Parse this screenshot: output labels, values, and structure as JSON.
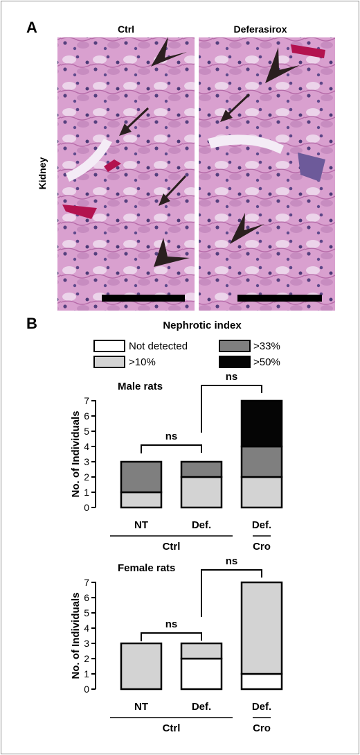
{
  "panel_a": {
    "label": "A",
    "row_label": "Kidney",
    "left_title": "Ctrl",
    "right_title": "Deferasirox"
  },
  "panel_b": {
    "label": "B",
    "legend_title": "Nephrotic index",
    "legend": [
      {
        "label": "Not detected",
        "color": "#ffffff"
      },
      {
        "label": ">33%",
        "color": "#7f7f7f"
      },
      {
        "label": ">10%",
        "color": "#d3d3d3"
      },
      {
        "label": ">50%",
        "color": "#050505"
      }
    ]
  },
  "chart_data": [
    {
      "type": "bar",
      "stacked": true,
      "title": "Male rats",
      "ylabel": "No. of Individuals",
      "ylim": [
        0,
        7
      ],
      "yticks": [
        0,
        1,
        2,
        3,
        4,
        5,
        6,
        7
      ],
      "categories": [
        "NT",
        "Def.",
        "Def."
      ],
      "groups": [
        {
          "label": "Ctrl",
          "categories": [
            0,
            1
          ]
        },
        {
          "label": "Cro",
          "categories": [
            2
          ]
        }
      ],
      "series": [
        {
          "name": "Not detected",
          "color": "#ffffff",
          "values": [
            0,
            0,
            0
          ]
        },
        {
          "name": ">10%",
          "color": "#d3d3d3",
          "values": [
            1,
            2,
            2
          ]
        },
        {
          "name": ">33%",
          "color": "#7f7f7f",
          "values": [
            2,
            1,
            2
          ]
        },
        {
          "name": ">50%",
          "color": "#050505",
          "values": [
            0,
            0,
            3
          ]
        }
      ],
      "annotations": [
        {
          "text": "ns",
          "between": [
            0,
            1
          ]
        },
        {
          "text": "ns",
          "between": [
            1,
            2
          ]
        }
      ]
    },
    {
      "type": "bar",
      "stacked": true,
      "title": "Female rats",
      "ylabel": "No. of Individuals",
      "ylim": [
        0,
        7
      ],
      "yticks": [
        0,
        1,
        2,
        3,
        4,
        5,
        6,
        7
      ],
      "categories": [
        "NT",
        "Def.",
        "Def."
      ],
      "groups": [
        {
          "label": "Ctrl",
          "categories": [
            0,
            1
          ]
        },
        {
          "label": "Cro",
          "categories": [
            2
          ]
        }
      ],
      "series": [
        {
          "name": "Not detected",
          "color": "#ffffff",
          "values": [
            0,
            2,
            1
          ]
        },
        {
          "name": ">10%",
          "color": "#d3d3d3",
          "values": [
            3,
            1,
            6
          ]
        },
        {
          "name": ">33%",
          "color": "#7f7f7f",
          "values": [
            0,
            0,
            0
          ]
        },
        {
          "name": ">50%",
          "color": "#050505",
          "values": [
            0,
            0,
            0
          ]
        }
      ],
      "annotations": [
        {
          "text": "ns",
          "between": [
            0,
            1
          ]
        },
        {
          "text": "ns",
          "between": [
            1,
            2
          ]
        }
      ]
    }
  ]
}
